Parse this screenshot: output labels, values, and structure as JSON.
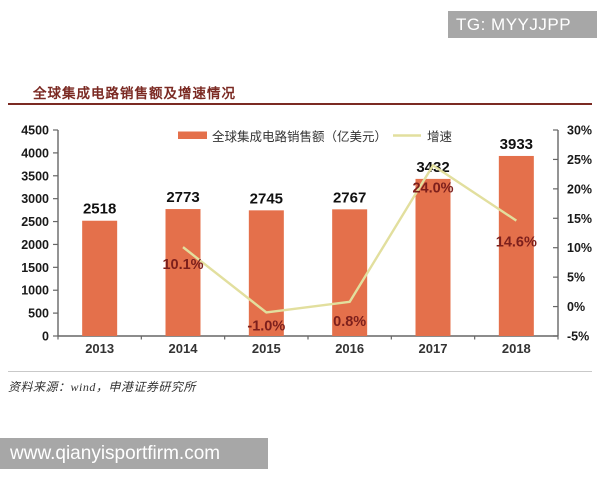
{
  "header": {
    "watermark": "TG: MYYJJPP"
  },
  "title": "全球集成电路销售额及增速情况",
  "source_note": "资料来源：wind，申港证券研究所",
  "footer": {
    "url": "www.qianyisportfirm.com"
  },
  "colors": {
    "bar": "#E4704B",
    "line": "#E2DF9E",
    "title_red": "#7B2A23",
    "pct_label": "#7C1F1C",
    "value_label": "#111111",
    "axis": "#666666",
    "tick_text": "#1A1A1A",
    "gray_box": "#A7A7A7"
  },
  "chart_data": {
    "type": "bar",
    "title": "全球集成电路销售额及增速情况",
    "categories": [
      "2013",
      "2014",
      "2015",
      "2016",
      "2017",
      "2018"
    ],
    "series": [
      {
        "name": "全球集成电路销售额（亿美元）",
        "type": "bar",
        "axis": "left",
        "values": [
          2518,
          2773,
          2745,
          2767,
          3432,
          3933
        ],
        "labels": [
          "2518",
          "2773",
          "2745",
          "2767",
          "3432",
          "3933"
        ]
      },
      {
        "name": "增速",
        "type": "line",
        "axis": "right",
        "values": [
          null,
          10.1,
          -1.0,
          0.8,
          24.0,
          14.6
        ],
        "labels": [
          "",
          "10.1%",
          "-1.0%",
          "0.8%",
          "24.0%",
          "14.6%"
        ]
      }
    ],
    "left_axis": {
      "min": 0,
      "max": 4500,
      "step": 500
    },
    "right_axis": {
      "min": -5,
      "max": 30,
      "step": 5,
      "suffix": "%"
    },
    "legend_position": "top",
    "grid": false
  }
}
